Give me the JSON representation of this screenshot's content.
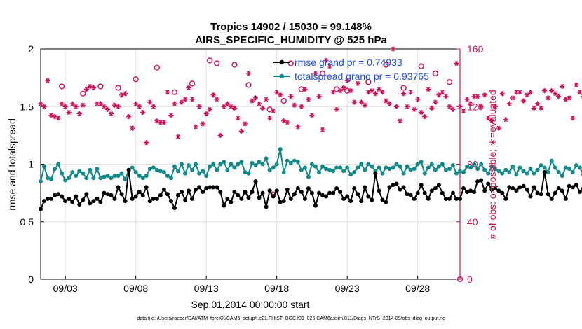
{
  "chart_data": {
    "type": "line",
    "title": "Tropics 14902 / 15030 = 99.148%",
    "subtitle": "AIRS_SPECIFIC_HUMIDITY @ 525 hPa",
    "xlabel": "Sep.01,2014 00:00:00 start",
    "ylabel": "rmse and totalspread",
    "y2label": "# of obs: o=possible; ∗=evaluated",
    "footnote": "data file: /Users/raeder/DAI/ATM_forcXX/CAM6_setup/f.e21.FHIST_BGC.f09_025.CAM6assim.011/Diags_NTrS_2014-09/obs_diag_output.nc",
    "xlim": [
      1.25,
      31.0
    ],
    "ylim": [
      0,
      2
    ],
    "y2lim": [
      0,
      160
    ],
    "xticks": [
      3,
      8,
      13,
      18,
      23,
      28
    ],
    "xtick_labels": [
      "09/03",
      "09/08",
      "09/13",
      "09/18",
      "09/23",
      "09/28"
    ],
    "yticks": [
      0,
      0.5,
      1,
      1.5,
      2
    ],
    "ytick_labels": [
      "0",
      "0.5",
      "1",
      "1.5",
      "2"
    ],
    "y2ticks": [
      0,
      40,
      80,
      120,
      160
    ],
    "y2tick_labels": [
      "0",
      "40",
      "80",
      "120",
      "160"
    ],
    "legend": [
      "rmse grand pr = 0.74933",
      "totalspread grand pr = 0.93765"
    ],
    "colors": {
      "rmse": "#000000",
      "totalspread": "#138a8a",
      "obs": "#d0145a",
      "legend_text": "#1f4fe0"
    },
    "x_start": 1.25,
    "x_step": 0.25,
    "series": [
      {
        "name": "rmse",
        "values": [
          0.61,
          0.68,
          0.7,
          0.7,
          0.73,
          0.74,
          0.72,
          0.68,
          0.7,
          0.67,
          0.72,
          0.65,
          0.69,
          0.74,
          0.66,
          0.68,
          0.7,
          0.67,
          0.75,
          0.74,
          0.73,
          0.7,
          0.8,
          0.74,
          0.68,
          0.95,
          0.7,
          0.72,
          0.76,
          0.73,
          0.8,
          0.68,
          0.7,
          0.7,
          0.73,
          0.78,
          0.74,
          0.68,
          0.62,
          0.73,
          0.76,
          0.69,
          0.77,
          0.7,
          0.78,
          0.8,
          0.76,
          0.79,
          0.8,
          0.8,
          0.8,
          0.76,
          0.64,
          0.7,
          0.67,
          0.76,
          0.73,
          0.7,
          0.76,
          0.71,
          0.76,
          0.85,
          0.71,
          0.75,
          0.63,
          0.77,
          0.72,
          0.77,
          0.67,
          0.68,
          0.78,
          0.7,
          0.74,
          0.79,
          0.76,
          0.7,
          0.79,
          0.75,
          0.64,
          0.75,
          0.73,
          0.72,
          0.75,
          0.75,
          0.79,
          0.76,
          0.7,
          0.72,
          0.68,
          0.79,
          0.74,
          0.68,
          0.8,
          0.72,
          0.69,
          0.92,
          0.77,
          0.69,
          0.67,
          0.8,
          0.82,
          0.83,
          0.78,
          0.8,
          0.74,
          0.73,
          0.7,
          0.75,
          0.82,
          0.75,
          0.7,
          0.77,
          0.79,
          0.82,
          0.75,
          0.7,
          0.7,
          0.75,
          0.7,
          0.7,
          0.79,
          0.76,
          0.77,
          0.76,
          0.85,
          0.86,
          0.77,
          0.83,
          0.78,
          0.79,
          0.77,
          0.75,
          0.7,
          0.8,
          0.79,
          0.77,
          0.8,
          0.81,
          0.78,
          0.72,
          0.8,
          0.75,
          0.74,
          0.93,
          0.74,
          0.7,
          0.75,
          0.79,
          0.77,
          0.7,
          0.81,
          0.8,
          0.82,
          0.76,
          0.79,
          0.76,
          0.71,
          0.83,
          0.78,
          0.74,
          0.82,
          0.8,
          0.77,
          0.81,
          0.76,
          0.79,
          0.85,
          0.77,
          0.75,
          0.8,
          0.83,
          0.75,
          0.7,
          0.7,
          0.8,
          0.78,
          0.82,
          0.87,
          0.76,
          0.68,
          0.85,
          0.79,
          0.7,
          0.84,
          0.68,
          0.76,
          0.6
        ]
      },
      {
        "name": "totalspread",
        "values": [
          0.85,
          0.98,
          0.88,
          0.87,
          0.96,
          1.0,
          0.92,
          0.86,
          0.88,
          0.93,
          0.9,
          0.94,
          0.92,
          0.88,
          0.95,
          0.88,
          0.96,
          0.88,
          0.89,
          0.9,
          0.88,
          0.9,
          0.9,
          0.92,
          0.87,
          0.95,
          0.97,
          0.93,
          0.9,
          0.88,
          0.9,
          0.96,
          0.97,
          0.95,
          0.94,
          0.93,
          0.9,
          0.88,
          0.98,
          0.94,
          1.0,
          0.92,
          0.99,
          0.95,
          1.0,
          0.92,
          0.94,
          0.9,
          0.98,
          1.0,
          0.95,
          1.0,
          1.02,
          0.95,
          1.0,
          0.97,
          1.0,
          1.02,
          0.93,
          0.92,
          1.01,
          0.99,
          1.02,
          1.0,
          1.05,
          0.95,
          0.97,
          1.0,
          1.13,
          0.93,
          1.03,
          1.01,
          1.03,
          1.02,
          0.95,
          0.97,
          0.89,
          1.0,
          0.98,
          0.93,
          0.98,
          0.96,
          0.95,
          0.94,
          0.97,
          0.97,
          0.94,
          0.97,
          0.91,
          0.93,
          0.97,
          1.0,
          0.95,
          1.0,
          0.98,
          0.94,
          0.97,
          0.92,
          0.97,
          0.96,
          0.97,
          1.0,
          0.98,
          0.92,
          0.98,
          0.95,
          0.96,
          1.0,
          1.02,
          0.92,
          0.97,
          1.0,
          0.95,
          0.98,
          1.0,
          0.95,
          0.96,
          0.99,
          0.92,
          0.94,
          0.93,
          0.98,
          0.97,
          1.0,
          0.96,
          1.0,
          0.95,
          0.92,
          0.98,
          0.96,
          0.94,
          0.92,
          0.95,
          0.93,
          0.98,
          0.91,
          0.97,
          0.94,
          0.92,
          0.96,
          0.92,
          0.95,
          0.99,
          0.97,
          0.93,
          1.03,
          0.97,
          0.93,
          0.9,
          0.97,
          0.96,
          0.93,
          0.99,
          0.97,
          0.91,
          1.0,
          0.97,
          0.98,
          0.95,
          0.98,
          0.94,
          0.96,
          0.98,
          0.95,
          0.96,
          0.93,
          0.97,
          0.95,
          0.96,
          1.0,
          0.98,
          1.02,
          0.99,
          1.0,
          1.01,
          1.0,
          1.0,
          0.97,
          1.04,
          0.98,
          1.12,
          0.97,
          1.03,
          1.01,
          1.01,
          0.96,
          0.99,
          0.97,
          0.95,
          0.97,
          0.94
        ]
      },
      {
        "name": "obs_evaluated",
        "values": [
          122,
          120,
          138,
          114,
          113,
          112,
          122,
          120,
          116,
          122,
          120,
          115,
          121,
          132,
          134,
          133,
          122,
          122,
          120,
          118,
          115,
          121,
          120,
          128,
          129,
          113,
          105,
          122,
          120,
          116,
          95,
          123,
          120,
          110,
          109,
          109,
          130,
          114,
          122,
          99,
          123,
          125,
          133,
          125,
          106,
          120,
          108,
          115,
          118,
          128,
          125,
          100,
          120,
          122,
          120,
          119,
          112,
          103,
          108,
          143,
          124,
          126,
          122,
          119,
          125,
          112,
          117,
          130,
          128,
          110,
          109,
          127,
          121,
          106,
          120,
          132,
          125,
          114,
          143,
          127,
          104,
          152,
          148,
          130,
          118,
          131,
          133,
          138,
          131,
          123,
          136,
          123,
          121,
          130,
          131,
          129,
          132,
          130,
          124,
          122,
          160,
          120,
          110,
          129,
          120,
          130,
          118,
          125,
          116,
          113,
          132,
          119,
          123,
          128,
          130,
          127,
          120,
          118,
          150,
          120,
          117,
          125,
          122,
          127,
          127,
          120,
          128,
          112,
          110,
          120,
          105,
          129,
          111,
          122,
          126,
          130,
          130,
          124,
          128,
          130,
          119,
          122,
          119,
          131,
          126,
          131,
          129,
          127,
          134,
          125,
          126,
          112,
          135,
          130,
          127,
          128,
          131,
          130,
          120,
          127,
          123,
          140,
          137,
          128,
          113,
          117,
          138,
          122,
          125,
          129,
          134,
          132,
          120,
          126,
          124,
          130,
          147,
          130,
          127,
          123,
          107,
          114,
          115,
          138,
          135,
          128,
          135,
          133,
          138,
          120,
          138
        ]
      },
      {
        "name": "obs_possible",
        "values": [
          null,
          null,
          null,
          null,
          null,
          null,
          null,
          null,
          null,
          null,
          null,
          null,
          null,
          null,
          134,
          null,
          null,
          null,
          null,
          null,
          null,
          null,
          null,
          null,
          null,
          null,
          null,
          null,
          null,
          null,
          null,
          null,
          null,
          null,
          null,
          null,
          130,
          null,
          null,
          null,
          null,
          null,
          null,
          null,
          null,
          null,
          null,
          null,
          null,
          null,
          null,
          null,
          null,
          null,
          null,
          null,
          null,
          null,
          null,
          null,
          null,
          null,
          null,
          null,
          null,
          null,
          null,
          null,
          null,
          null,
          null,
          null,
          null,
          null,
          null,
          null,
          null,
          null,
          null,
          null,
          null,
          null,
          null,
          null,
          null,
          null,
          null,
          null,
          null,
          null,
          null,
          null,
          null,
          null,
          null,
          null,
          null,
          null,
          null,
          null,
          null,
          null,
          null,
          null,
          null,
          null,
          null,
          null,
          null,
          null,
          null,
          null,
          null,
          null,
          null,
          null,
          null,
          null,
          null,
          null,
          null,
          null,
          null,
          null,
          null,
          null,
          null,
          null,
          null,
          null,
          null,
          null,
          null,
          null,
          null,
          null,
          null,
          null,
          null,
          null,
          null,
          null,
          null,
          null,
          null,
          null,
          null,
          null,
          null,
          null,
          null,
          null,
          null,
          null,
          null,
          null,
          null,
          null,
          null,
          null,
          null,
          null,
          null,
          null,
          null,
          null,
          null,
          null,
          null,
          null,
          null,
          null,
          null,
          null,
          null,
          null,
          null,
          null,
          null,
          null,
          null,
          null,
          null,
          null,
          null,
          null,
          null,
          null,
          null,
          null,
          null
        ]
      }
    ],
    "obs_possible_markers": [
      {
        "x": 2.75,
        "v": 134
      },
      {
        "x": 4.25,
        "v": 129
      },
      {
        "x": 5.5,
        "v": 134
      },
      {
        "x": 6.75,
        "v": 133
      },
      {
        "x": 8.0,
        "v": 139
      },
      {
        "x": 9.5,
        "v": 147
      },
      {
        "x": 10.75,
        "v": 130
      },
      {
        "x": 12.0,
        "v": 136
      },
      {
        "x": 13.25,
        "v": 152
      },
      {
        "x": 13.75,
        "v": 150
      },
      {
        "x": 15.0,
        "v": 149
      },
      {
        "x": 16.0,
        "v": 135
      },
      {
        "x": 17.5,
        "v": 118
      },
      {
        "x": 18.5,
        "v": 124
      },
      {
        "x": 19.0,
        "v": 150
      },
      {
        "x": 19.75,
        "v": 132
      },
      {
        "x": 21.25,
        "v": 143
      },
      {
        "x": 22.25,
        "v": 132
      },
      {
        "x": 23.0,
        "v": 131
      },
      {
        "x": 24.5,
        "v": 137
      },
      {
        "x": 25.75,
        "v": 149
      },
      {
        "x": 27.0,
        "v": 133
      },
      {
        "x": 28.25,
        "v": 148
      },
      {
        "x": 29.25,
        "v": 143
      },
      {
        "x": 30.25,
        "v": 137
      },
      {
        "x": 31.0,
        "v": 0
      },
      {
        "x": 17.75,
        "v": 59
      }
    ]
  }
}
